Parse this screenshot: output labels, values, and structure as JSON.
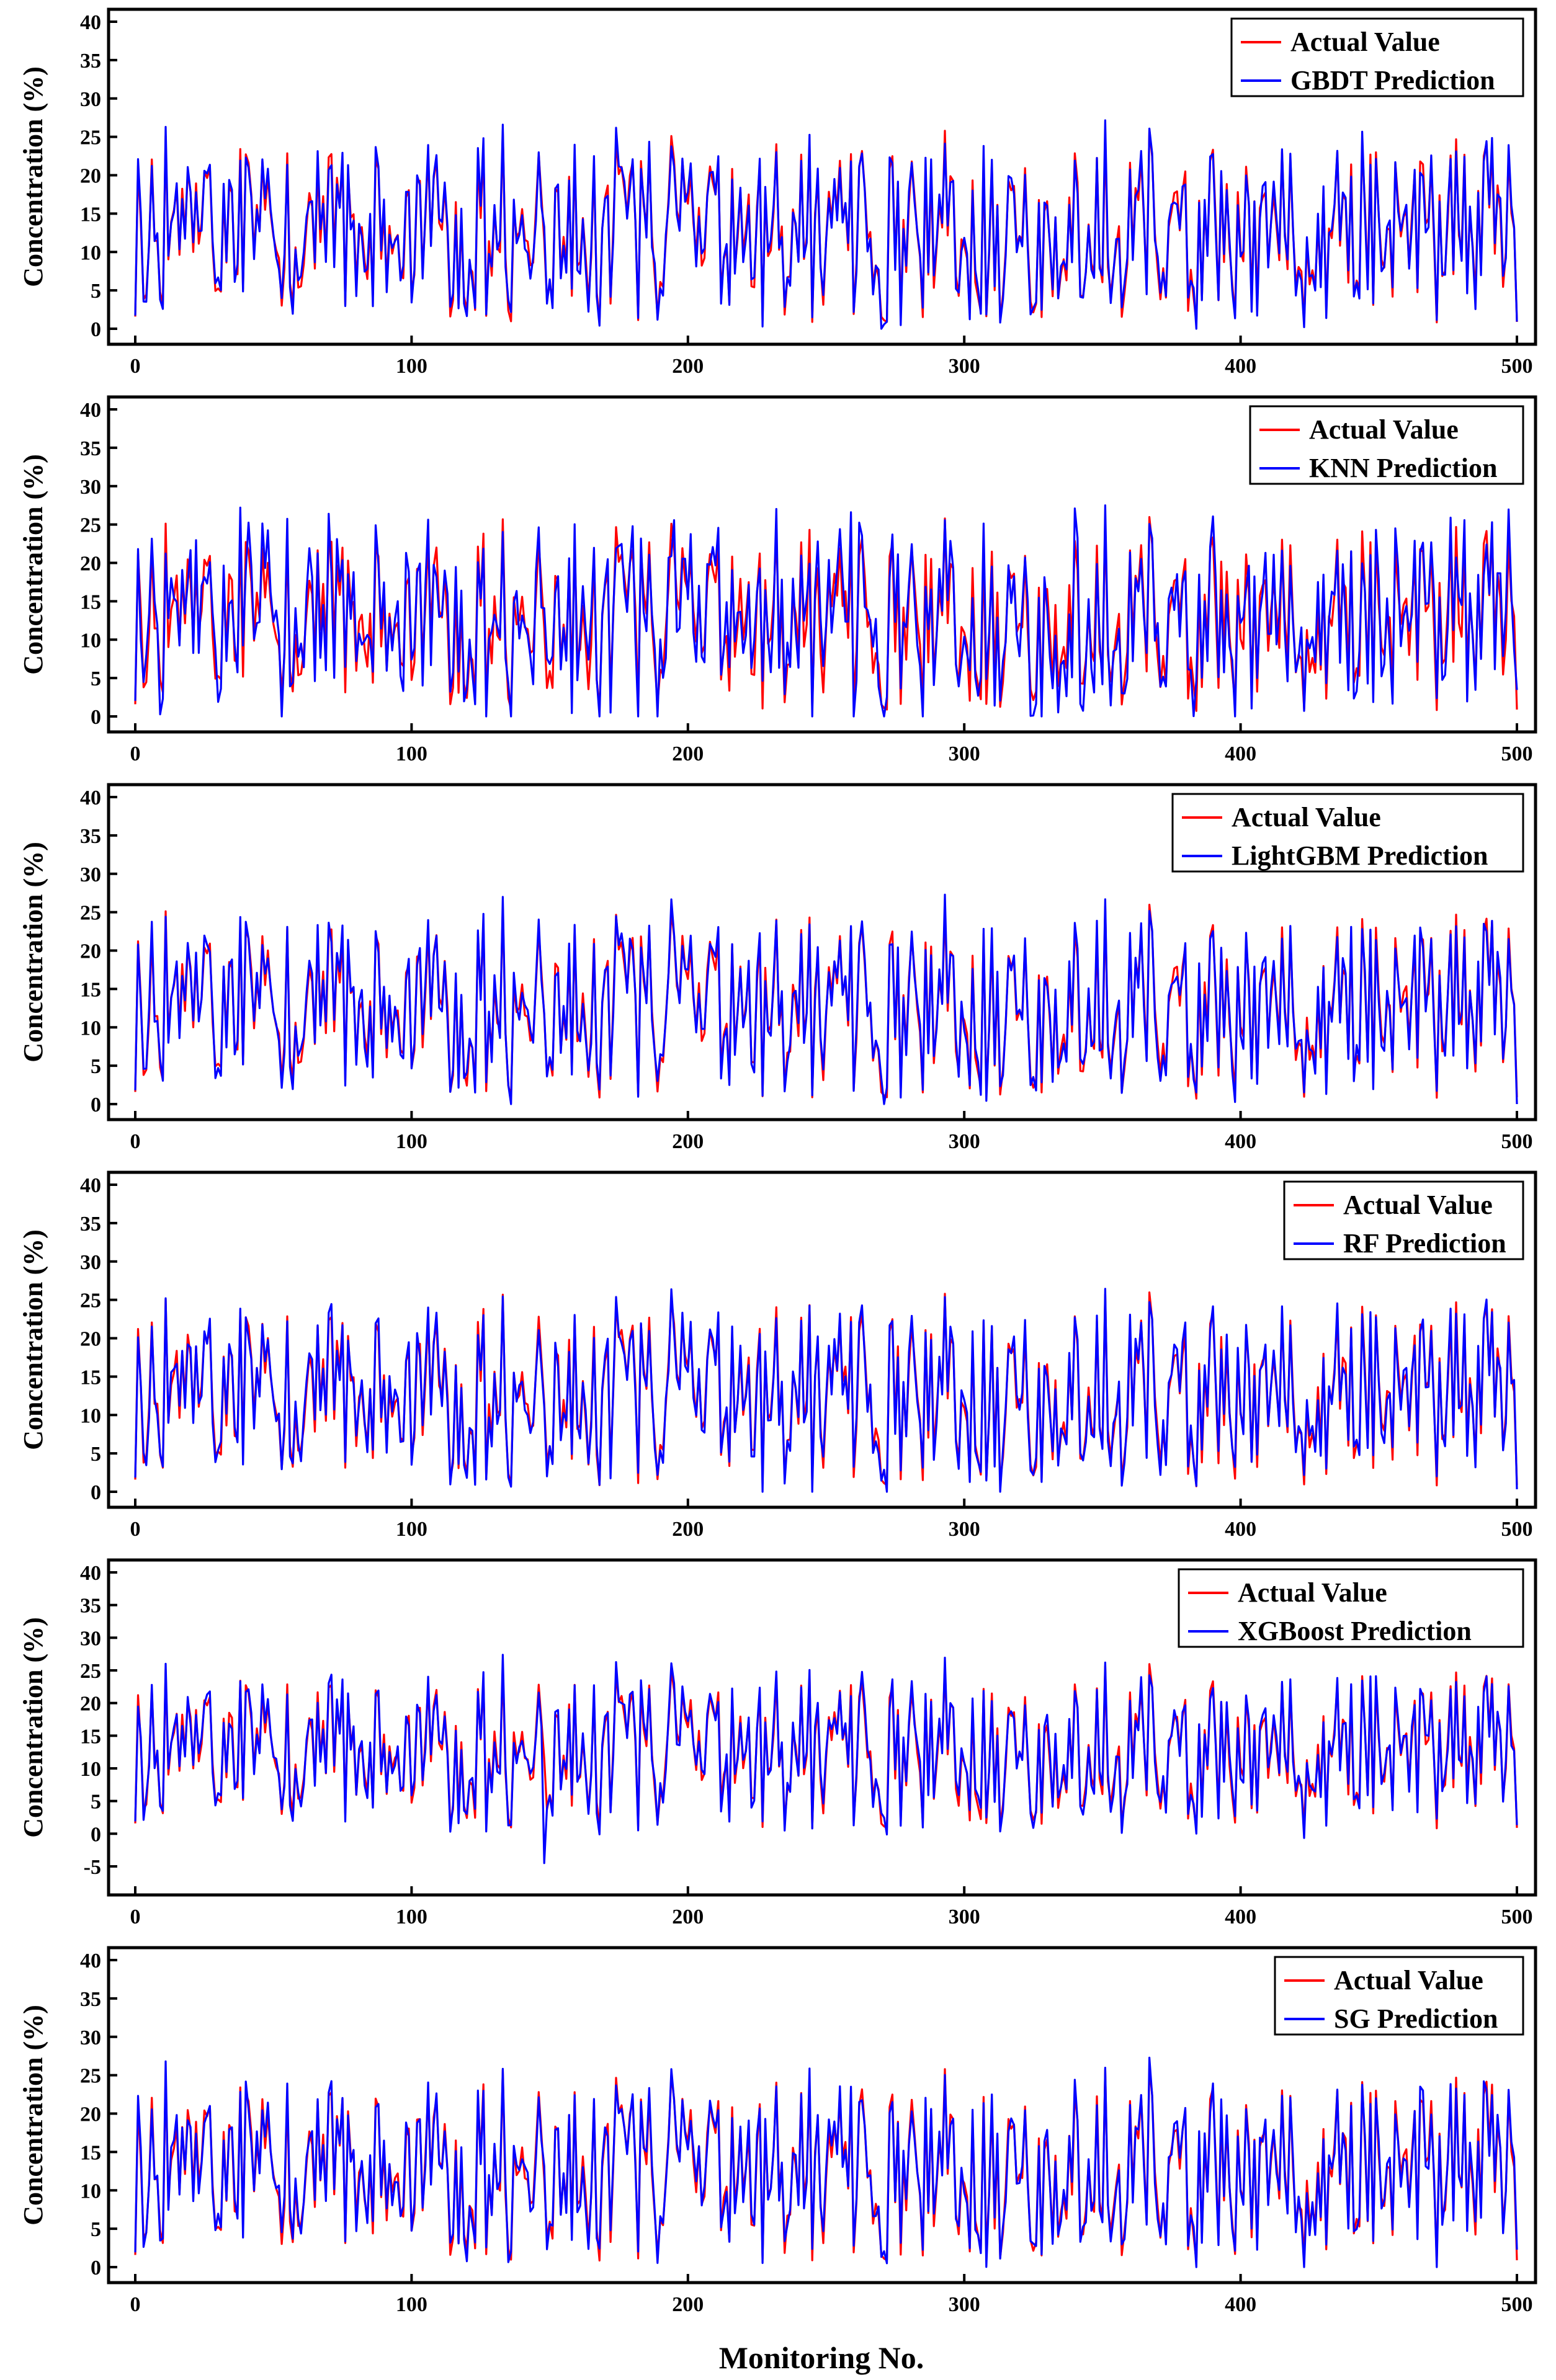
{
  "figure": {
    "xlabel": "Monitoring No."
  },
  "colors": {
    "actual": "#ff0000",
    "predicted": "#0000ff"
  },
  "chart_data": [
    {
      "type": "line",
      "title": "",
      "xlabel": "",
      "ylabel": "Concentration (%)",
      "xlim": [
        0,
        500
      ],
      "ylim": [
        0,
        40
      ],
      "xticks": [
        "0",
        "100",
        "200",
        "300",
        "400",
        "500"
      ],
      "yticks": [
        "0",
        "5",
        "10",
        "15",
        "20",
        "25",
        "30",
        "35",
        "40"
      ],
      "legend_position": "top-right",
      "series": [
        {
          "name": "Actual Value",
          "color": "#ff0000"
        },
        {
          "name": "GBDT Prediction",
          "color": "#0000ff"
        }
      ]
    },
    {
      "type": "line",
      "title": "",
      "xlabel": "",
      "ylabel": "Concentration (%)",
      "xlim": [
        0,
        500
      ],
      "ylim": [
        0,
        40
      ],
      "xticks": [
        "0",
        "100",
        "200",
        "300",
        "400",
        "500"
      ],
      "yticks": [
        "0",
        "5",
        "10",
        "15",
        "20",
        "25",
        "30",
        "35",
        "40"
      ],
      "legend_position": "top-right",
      "series": [
        {
          "name": "Actual Value",
          "color": "#ff0000"
        },
        {
          "name": "KNN Prediction",
          "color": "#0000ff"
        }
      ]
    },
    {
      "type": "line",
      "title": "",
      "xlabel": "",
      "ylabel": "Concentration (%)",
      "xlim": [
        0,
        500
      ],
      "ylim": [
        0,
        40
      ],
      "xticks": [
        "0",
        "100",
        "200",
        "300",
        "400",
        "500"
      ],
      "yticks": [
        "0",
        "5",
        "10",
        "15",
        "20",
        "25",
        "30",
        "35",
        "40"
      ],
      "legend_position": "top-right",
      "series": [
        {
          "name": "Actual Value",
          "color": "#ff0000"
        },
        {
          "name": "LightGBM Prediction",
          "color": "#0000ff"
        }
      ]
    },
    {
      "type": "line",
      "title": "",
      "xlabel": "",
      "ylabel": "Concentration (%)",
      "xlim": [
        0,
        500
      ],
      "ylim": [
        0,
        40
      ],
      "xticks": [
        "0",
        "100",
        "200",
        "300",
        "400",
        "500"
      ],
      "yticks": [
        "0",
        "5",
        "10",
        "15",
        "20",
        "25",
        "30",
        "35",
        "40"
      ],
      "legend_position": "top-right",
      "series": [
        {
          "name": "Actual Value",
          "color": "#ff0000"
        },
        {
          "name": "RF Prediction",
          "color": "#0000ff"
        }
      ]
    },
    {
      "type": "line",
      "title": "",
      "xlabel": "",
      "ylabel": "Concentration (%)",
      "xlim": [
        0,
        500
      ],
      "ylim": [
        -7,
        40
      ],
      "xticks": [
        "0",
        "100",
        "200",
        "300",
        "400",
        "500"
      ],
      "yticks": [
        "-5",
        "0",
        "5",
        "10",
        "15",
        "20",
        "25",
        "30",
        "35",
        "40"
      ],
      "legend_position": "top-right",
      "series": [
        {
          "name": "Actual Value",
          "color": "#ff0000"
        },
        {
          "name": "XGBoost Prediction",
          "color": "#0000ff"
        }
      ]
    },
    {
      "type": "line",
      "title": "",
      "xlabel": "",
      "ylabel": "Concentration (%)",
      "xlim": [
        0,
        500
      ],
      "ylim": [
        0,
        40
      ],
      "xticks": [
        "0",
        "100",
        "200",
        "300",
        "400",
        "500"
      ],
      "yticks": [
        "0",
        "5",
        "10",
        "15",
        "20",
        "25",
        "30",
        "35",
        "40"
      ],
      "legend_position": "top-right",
      "series": [
        {
          "name": "Actual Value",
          "color": "#ff0000"
        },
        {
          "name": "SG Prediction",
          "color": "#0000ff"
        }
      ]
    }
  ]
}
